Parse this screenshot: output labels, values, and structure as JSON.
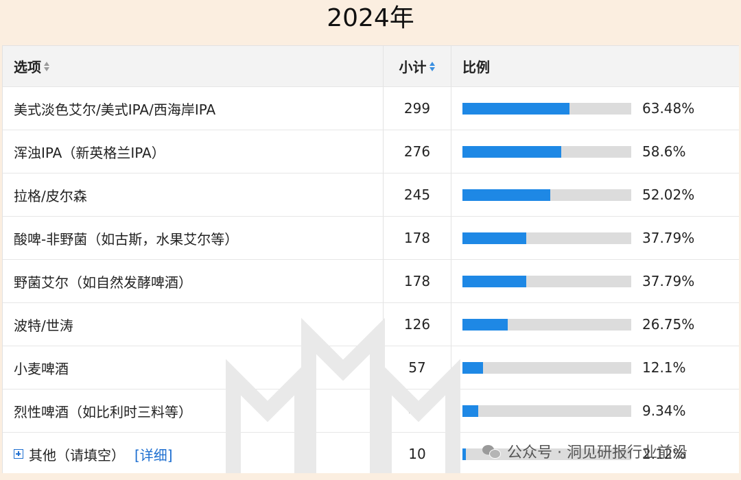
{
  "page_title": "2024年",
  "table": {
    "headers": {
      "option": "选项",
      "subtotal": "小计",
      "ratio": "比例"
    },
    "rows": [
      {
        "option": "美式淡色艾尔/美式IPA/西海岸IPA",
        "count": "299",
        "percent_label": "63.48%",
        "percent": 63.48
      },
      {
        "option": "浑浊IPA（新英格兰IPA）",
        "count": "276",
        "percent_label": "58.6%",
        "percent": 58.6
      },
      {
        "option": "拉格/皮尔森",
        "count": "245",
        "percent_label": "52.02%",
        "percent": 52.02
      },
      {
        "option": "酸啤-非野菌（如古斯，水果艾尔等）",
        "count": "178",
        "percent_label": "37.79%",
        "percent": 37.79
      },
      {
        "option": "野菌艾尔（如自然发酵啤酒）",
        "count": "178",
        "percent_label": "37.79%",
        "percent": 37.79
      },
      {
        "option": "波特/世涛",
        "count": "126",
        "percent_label": "26.75%",
        "percent": 26.75
      },
      {
        "option": "小麦啤酒",
        "count": "57",
        "percent_label": "12.1%",
        "percent": 12.1
      },
      {
        "option": "烈性啤酒（如比利时三料等）",
        "count": "44",
        "percent_label": "9.34%",
        "percent": 9.34
      },
      {
        "option": "其他（请填空）",
        "count": "10",
        "percent_label": "2.12%",
        "percent": 2.12,
        "detail_link": "[详细]"
      }
    ]
  },
  "watermark": {
    "text": "公众号 · 洞见研报行业前沿"
  },
  "colors": {
    "bar": "#1e88e5",
    "track": "#dcdcdc",
    "link": "#1e6fd0",
    "background": "#fbeee0"
  }
}
